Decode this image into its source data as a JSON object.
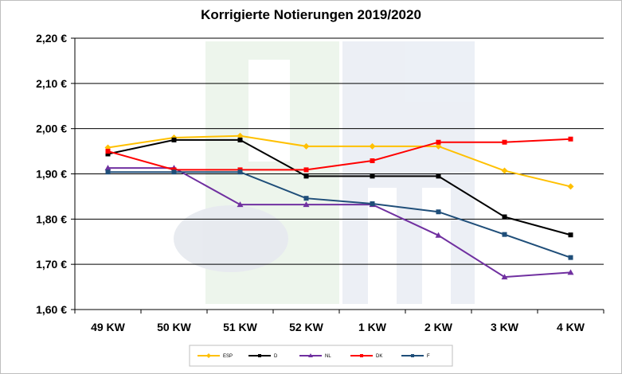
{
  "chart_data": {
    "type": "line",
    "title": "Korrigierte Notierungen 2019/2020",
    "categories": [
      "49 KW",
      "50 KW",
      "51 KW",
      "52 KW",
      "1 KW",
      "2 KW",
      "3 KW",
      "4 KW"
    ],
    "ylim": [
      1.6,
      2.2
    ],
    "yticks": [
      2.2,
      2.1,
      2.0,
      1.9,
      1.8,
      1.7,
      1.6
    ],
    "ytick_labels": [
      "2,20 €",
      "2,10 €",
      "2,00 €",
      "1,90 €",
      "1,80 €",
      "1,70 €",
      "1,60 €"
    ],
    "grid": true,
    "legend_position": "bottom",
    "series": [
      {
        "name": "ESP",
        "color": "#FFC000",
        "marker": "diamond",
        "values": [
          1.958,
          1.98,
          1.984,
          1.961,
          1.961,
          1.961,
          1.907,
          1.872
        ]
      },
      {
        "name": "D",
        "color": "#000000",
        "marker": "square",
        "values": [
          1.944,
          1.975,
          1.975,
          1.895,
          1.895,
          1.895,
          1.805,
          1.765
        ]
      },
      {
        "name": "NL",
        "color": "#7030A0",
        "marker": "triangle",
        "values": [
          1.913,
          1.913,
          1.832,
          1.832,
          1.832,
          1.764,
          1.672,
          1.682
        ]
      },
      {
        "name": "DK",
        "color": "#FF0000",
        "marker": "square",
        "values": [
          1.95,
          1.909,
          1.909,
          1.909,
          1.929,
          1.97,
          1.97,
          1.977
        ]
      },
      {
        "name": "F",
        "color": "#1F4E79",
        "marker": "square",
        "values": [
          1.904,
          1.904,
          1.904,
          1.846,
          1.834,
          1.816,
          1.766,
          1.715
        ]
      }
    ]
  }
}
